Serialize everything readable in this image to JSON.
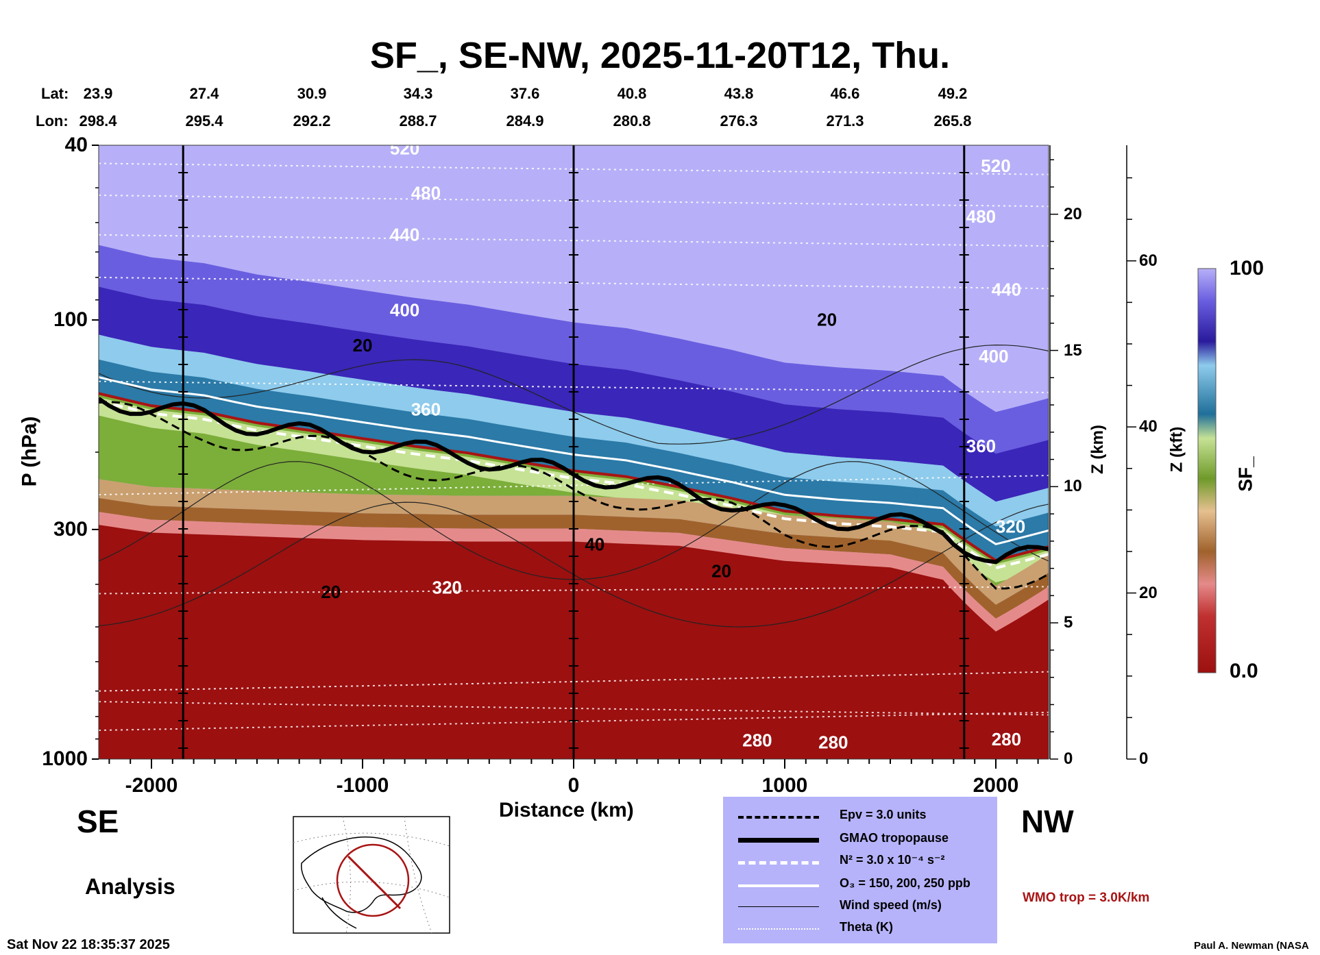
{
  "title": "SF_, SE-NW, 2025-11-20T12, Thu.",
  "lat_label": "Lat:",
  "lon_label": "Lon:",
  "lat_values": [
    "23.9",
    "27.4",
    "30.9",
    "34.3",
    "37.6",
    "40.8",
    "43.8",
    "46.6",
    "49.2"
  ],
  "lon_values": [
    "298.4",
    "295.4",
    "292.2",
    "288.7",
    "284.9",
    "280.8",
    "276.3",
    "271.3",
    "265.8"
  ],
  "colors": {
    "stratosphere_top": "#b7b0f8",
    "stratosphere_dark": "#3a26b8",
    "light_blue": "#8ecbec",
    "teal": "#1f6f9a",
    "green": "#7cae3a",
    "light_green": "#c6e295",
    "tan": "#caa070",
    "brown": "#a0622c",
    "pink": "#e58a8a",
    "troposphere_red": "#9c1010",
    "wmo_red": "#a81414",
    "legend_bg": "#b6b3fb"
  },
  "chart_data": {
    "type": "heatmap",
    "title": "SF_, SE-NW, 2025-11-20T12, Thu.",
    "xlabel": "Distance (km)",
    "ylabel": "P (hPa)",
    "right_axis_1_label": "Z (km)",
    "right_axis_2_label": "Z (kft)",
    "colorbar_label": "SF_",
    "xlim": [
      -2250,
      2250
    ],
    "ylim_hpa": [
      1000,
      40
    ],
    "x_ticks": [
      -2000,
      -1000,
      0,
      1000,
      2000
    ],
    "y_ticks": [
      40,
      100,
      300,
      1000
    ],
    "z_km_ticks": [
      0,
      5,
      10,
      15,
      20
    ],
    "z_kft_ticks": [
      0,
      20,
      40,
      60
    ],
    "colorbar_range": [
      0.0,
      100
    ],
    "colorbar_tick_labels": [
      "100",
      "0.0"
    ],
    "vertical_markers_km": [
      -1850,
      0,
      1850
    ],
    "theta_contour_labels": [
      "520",
      "480",
      "440",
      "400",
      "360",
      "320",
      "280"
    ],
    "wind_contour_labels": [
      "20",
      "40"
    ],
    "tropopause_hpa": [
      [
        -2250,
        150
      ],
      [
        -2000,
        160
      ],
      [
        -1750,
        165
      ],
      [
        -1500,
        175
      ],
      [
        -1250,
        182
      ],
      [
        -1000,
        190
      ],
      [
        -750,
        198
      ],
      [
        -500,
        205
      ],
      [
        -250,
        215
      ],
      [
        0,
        225
      ],
      [
        250,
        232
      ],
      [
        500,
        245
      ],
      [
        750,
        260
      ],
      [
        1000,
        278
      ],
      [
        1250,
        285
      ],
      [
        1500,
        290
      ],
      [
        1750,
        298
      ],
      [
        2000,
        360
      ],
      [
        2250,
        335
      ]
    ],
    "boundary_layer_top_hpa": [
      [
        -2250,
        240
      ],
      [
        -2000,
        250
      ],
      [
        -1500,
        255
      ],
      [
        -1000,
        260
      ],
      [
        -500,
        262
      ],
      [
        0,
        262
      ],
      [
        500,
        268
      ],
      [
        1000,
        290
      ],
      [
        1500,
        300
      ],
      [
        1750,
        320
      ],
      [
        2000,
        420
      ],
      [
        2250,
        355
      ]
    ]
  },
  "side_labels": {
    "se": "SE",
    "nw": "NW",
    "analysis": "Analysis"
  },
  "legend": {
    "items": [
      {
        "label": "Epv = 3.0 units",
        "style": "dashed-black"
      },
      {
        "label": "GMAO tropopause",
        "style": "thick-black"
      },
      {
        "label": "N² = 3.0 x 10⁻⁴ s⁻²",
        "style": "dashed-white"
      },
      {
        "label": "O₃ = 150, 200, 250 ppb",
        "style": "solid-white"
      },
      {
        "label": "Wind speed (m/s)",
        "style": "thin-black"
      },
      {
        "label": "Theta (K)",
        "style": "dotted-white"
      }
    ]
  },
  "wmo_trop": "WMO trop = 3.0K/km",
  "timestamp": "Sat Nov 22 18:35:37 2025",
  "credit": "Paul A. Newman (NASA"
}
